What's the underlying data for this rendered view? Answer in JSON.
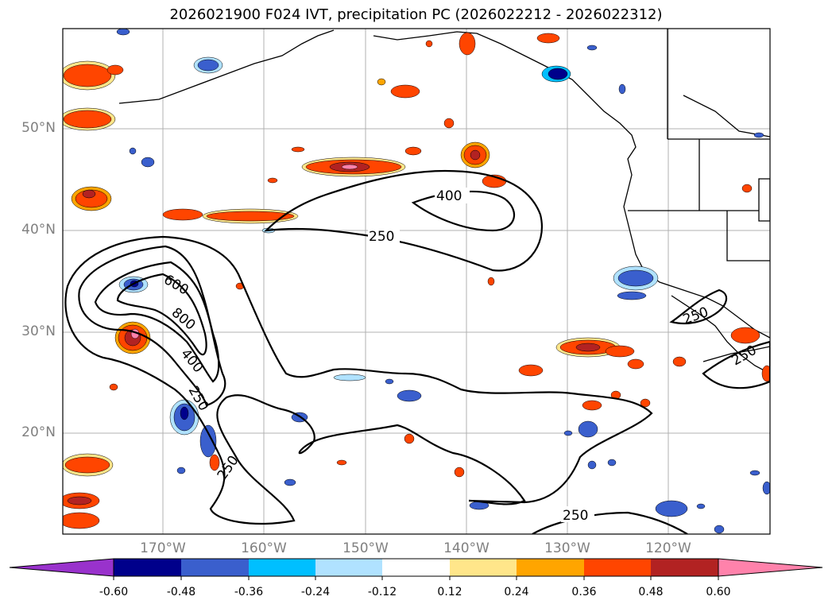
{
  "title": "2026021900 F024 IVT, precipitation PC (2026022212 - 2026022312)",
  "map": {
    "lat_labels": [
      "50°N",
      "40°N",
      "30°N",
      "20°N"
    ],
    "lon_labels": [
      "170°W",
      "160°W",
      "150°W",
      "140°W",
      "130°W",
      "120°W"
    ],
    "ivt_contour_levels": [
      "250",
      "400",
      "600",
      "800",
      "400",
      "250",
      "250",
      "250",
      "250",
      "250"
    ]
  },
  "colorbar": {
    "ticks": [
      "-0.60",
      "-0.48",
      "-0.36",
      "-0.24",
      "-0.12",
      "0.12",
      "0.24",
      "0.36",
      "0.48",
      "0.60"
    ],
    "colors": [
      "#9932cc",
      "#00008b",
      "#3a5fcd",
      "#00bfff",
      "#b0e2ff",
      "#ffffff",
      "#ffe68a",
      "#ffa500",
      "#ff4500",
      "#b22222",
      "#ff82ab"
    ]
  }
}
